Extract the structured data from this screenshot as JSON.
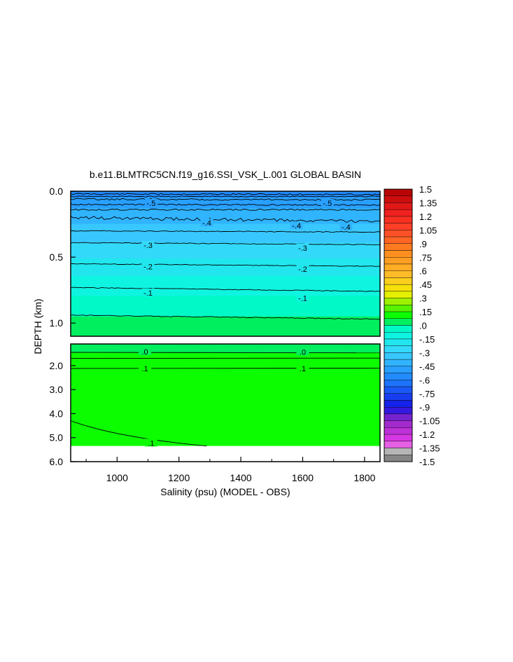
{
  "chart_data": {
    "type": "heatmap",
    "title": "b.e11.BLMTRC5CN.f19_g16.SSI_VSK_L.001 GLOBAL BASIN",
    "xlabel": "Salinity (psu) (MODEL - OBS)",
    "ylabel": "DEPTH (km)",
    "xlim": [
      850,
      1850
    ],
    "x_ticks": [
      "1000",
      "1200",
      "1400",
      "1600",
      "1800"
    ],
    "upper_panel": {
      "ylim": [
        0.0,
        1.1
      ],
      "y_ticks": [
        "0.0",
        "0.5",
        "1.0"
      ],
      "contour_levels": [
        -0.5,
        -0.4,
        -0.3,
        -0.2,
        -0.1,
        0.0
      ],
      "contour_labels": [
        {
          "level": -0.5,
          "text": "-.5",
          "x": 1110,
          "depth": 0.09
        },
        {
          "level": -0.5,
          "text": "-.5",
          "x": 1680,
          "depth": 0.09
        },
        {
          "level": -0.4,
          "text": "-.4",
          "x": 1290,
          "depth": 0.24
        },
        {
          "level": -0.4,
          "text": "-.4",
          "x": 1580,
          "depth": 0.26
        },
        {
          "level": -0.4,
          "text": "-.4",
          "x": 1740,
          "depth": 0.27
        },
        {
          "level": -0.3,
          "text": "-.3",
          "x": 1100,
          "depth": 0.41
        },
        {
          "level": -0.3,
          "text": "-.3",
          "x": 1600,
          "depth": 0.43
        },
        {
          "level": -0.2,
          "text": "-.2",
          "x": 1100,
          "depth": 0.57
        },
        {
          "level": -0.2,
          "text": "-.2",
          "x": 1600,
          "depth": 0.59
        },
        {
          "level": -0.1,
          "text": "-.1",
          "x": 1100,
          "depth": 0.77
        },
        {
          "level": -0.1,
          "text": "-.1",
          "x": 1600,
          "depth": 0.81
        }
      ]
    },
    "lower_panel": {
      "ylim": [
        1.1,
        6.0
      ],
      "y_ticks": [
        "2.0",
        "3.0",
        "4.0",
        "5.0",
        "6.0"
      ],
      "data_bottom_depth": 5.35,
      "contour_labels": [
        {
          "level": 0.0,
          "text": ".0",
          "x": 1090,
          "depth": 1.42
        },
        {
          "level": 0.0,
          "text": ".0",
          "x": 1600,
          "depth": 1.43
        },
        {
          "level": 0.1,
          "text": ".1",
          "x": 1090,
          "depth": 2.12
        },
        {
          "level": 0.1,
          "text": ".1",
          "x": 1600,
          "depth": 2.12
        },
        {
          "level": 0.1,
          "text": ".1",
          "x": 1110,
          "depth": 5.22
        }
      ]
    },
    "colorbar": {
      "min": -1.5,
      "max": 1.5,
      "step": 0.075,
      "tick_labels": [
        "1.5",
        "1.35",
        "1.2",
        "1.05",
        ".9",
        ".75",
        ".6",
        ".45",
        ".3",
        ".15",
        ".0",
        "-.15",
        "-.3",
        "-.45",
        "-.6",
        "-.75",
        "-.9",
        "-1.05",
        "-1.2",
        "-1.35",
        "-1.5"
      ]
    }
  }
}
